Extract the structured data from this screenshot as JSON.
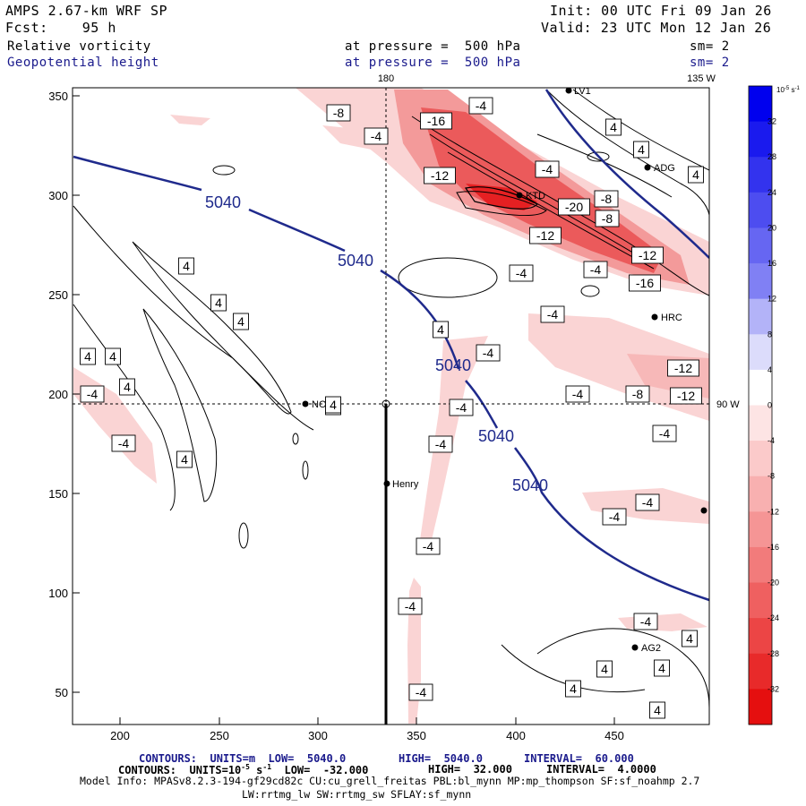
{
  "header": {
    "model": "AMPS 2.67-km WRF SP",
    "init": "Init: 00 UTC Fri 09 Jan 26",
    "fcst": "Fcst:    95 h",
    "valid": "Valid: 23 UTC Mon 12 Jan 26",
    "field1": "Relative vorticity",
    "field1_level": "at pressure =  500 hPa",
    "field1_sm": "sm= 2",
    "field2": "Geopotential height",
    "field2_level": "at pressure =  500 hPa",
    "field2_sm": "sm= 2"
  },
  "map": {
    "meridian_180": "180",
    "meridian_135w": "135 W",
    "meridian_90w": "90 W",
    "x_ticks": [
      "200",
      "250",
      "300",
      "350",
      "400",
      "450"
    ],
    "y_ticks": [
      "350",
      "300",
      "250",
      "200",
      "150",
      "100",
      "50"
    ],
    "height_labels": [
      "5040",
      "5040",
      "5040",
      "5040",
      "5040"
    ],
    "stations": [
      {
        "name": "LV1"
      },
      {
        "name": "ADG"
      },
      {
        "name": "KTD"
      },
      {
        "name": "HRC"
      },
      {
        "name": "NOU"
      },
      {
        "name": "Henry"
      },
      {
        "name": "AG2"
      },
      {
        "name": ""
      }
    ],
    "vort_labels": [
      "-8",
      "-4",
      "-16",
      "-4",
      "-12",
      "-4",
      "-8",
      "-20",
      "-12",
      "-8",
      "-4",
      "-12",
      "-16",
      "-4",
      "4",
      "4",
      "4",
      "4",
      "4",
      "4",
      "4",
      "4",
      "4",
      "4",
      "4",
      "4",
      "-4",
      "-4",
      "-4",
      "-12",
      "-8",
      "-12",
      "-4",
      "-4",
      "-4",
      "-4",
      "-4",
      "-4",
      "-4",
      "-4",
      "4",
      "-4",
      "4",
      "4",
      "4",
      "4",
      "-4",
      "-4",
      "4"
    ],
    "colors": {
      "contour_height": "#1f2a8c",
      "contour_vort": "#000000",
      "fill_light": "#fad4d4",
      "fill_mid": "#f39a9a",
      "fill_strong": "#e8383a"
    }
  },
  "colorbar": {
    "unit": "10^-5 s^-1",
    "unit_base": "10",
    "unit_exp": "-5",
    "unit_s": "s",
    "unit_sexp": "-1",
    "labels": [
      "32",
      "28",
      "24",
      "20",
      "16",
      "12",
      "8",
      "4",
      "0",
      "-4",
      "-8",
      "-12",
      "-16",
      "-20",
      "-24",
      "-28",
      "-32"
    ],
    "colors": [
      "#0000ee",
      "#1a1aee",
      "#3333ee",
      "#4d4df0",
      "#6666f2",
      "#8080f4",
      "#b3b3f8",
      "#dcdcfb",
      "#ffffff",
      "#fde4e4",
      "#fbcaca",
      "#f8b0b0",
      "#f59595",
      "#f27b7b",
      "#ef6060",
      "#ec4545",
      "#e82a2a",
      "#e50f0f"
    ]
  },
  "footer": {
    "line1_a": "CONTOURS:  UNITS=m  LOW=  5040.0",
    "line1_b": "HIGH=  5040.0",
    "line1_c": "INTERVAL=  60.000",
    "line2_a": "CONTOURS:  UNITS=10",
    "line2_exp": "-5",
    "line2_b": " s",
    "line2_exp2": "-1",
    "line2_c": "  LOW=  -32.000",
    "line2_d": "HIGH=  32.000",
    "line2_e": "INTERVAL=  4.0000",
    "line3": "Model Info: MPASv8.2.3-194-gf29cd82c CU:cu_grell_freitas PBL:bl_mynn MP:mp_thompson SF:sf_noahmp 2.7",
    "line4": "LW:rrtmg_lw SW:rrtmg_sw SFLAY:sf_mynn"
  }
}
